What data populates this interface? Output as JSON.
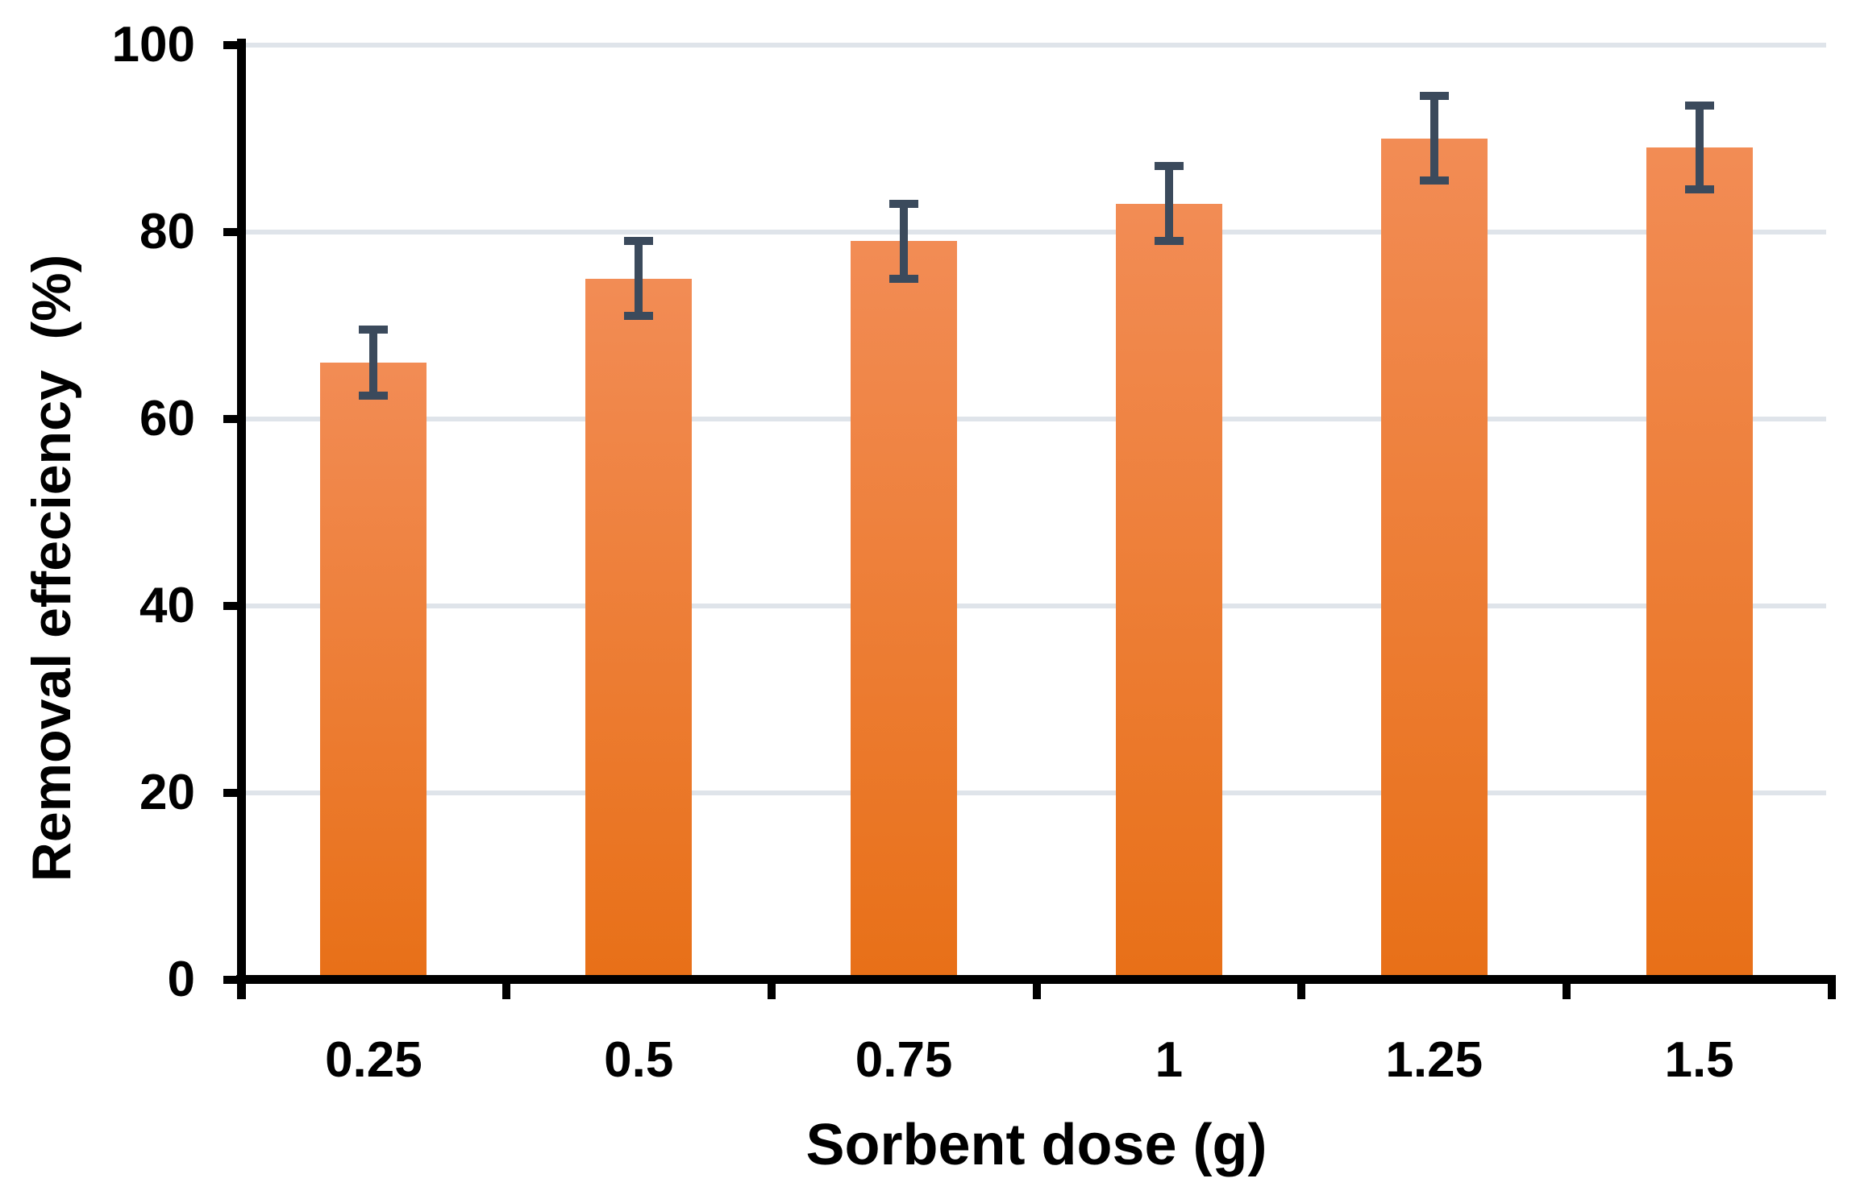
{
  "chart_data": {
    "type": "bar",
    "title": "",
    "categories": [
      "0.25",
      "0.5",
      "0.75",
      "1",
      "1.25",
      "1.5"
    ],
    "values": [
      66,
      75,
      79,
      83,
      90,
      89
    ],
    "error_bars": [
      3.5,
      4,
      4,
      4,
      4.5,
      4.5
    ],
    "xlabel": "Sorbent dose (g)",
    "ylabel": "Removal effeciency  (%)",
    "yticks": [
      0,
      20,
      40,
      60,
      80,
      100
    ],
    "ylim": [
      0,
      100
    ],
    "grid": "horizontal",
    "legend": "none",
    "colors": {
      "bar_gradient_top": "#F28C55",
      "bar_gradient_bottom": "#E87018",
      "error_bar": "#3B4A5C",
      "gridline": "#DFE4EA",
      "axis": "#000000",
      "background": "#FFFFFF"
    }
  }
}
